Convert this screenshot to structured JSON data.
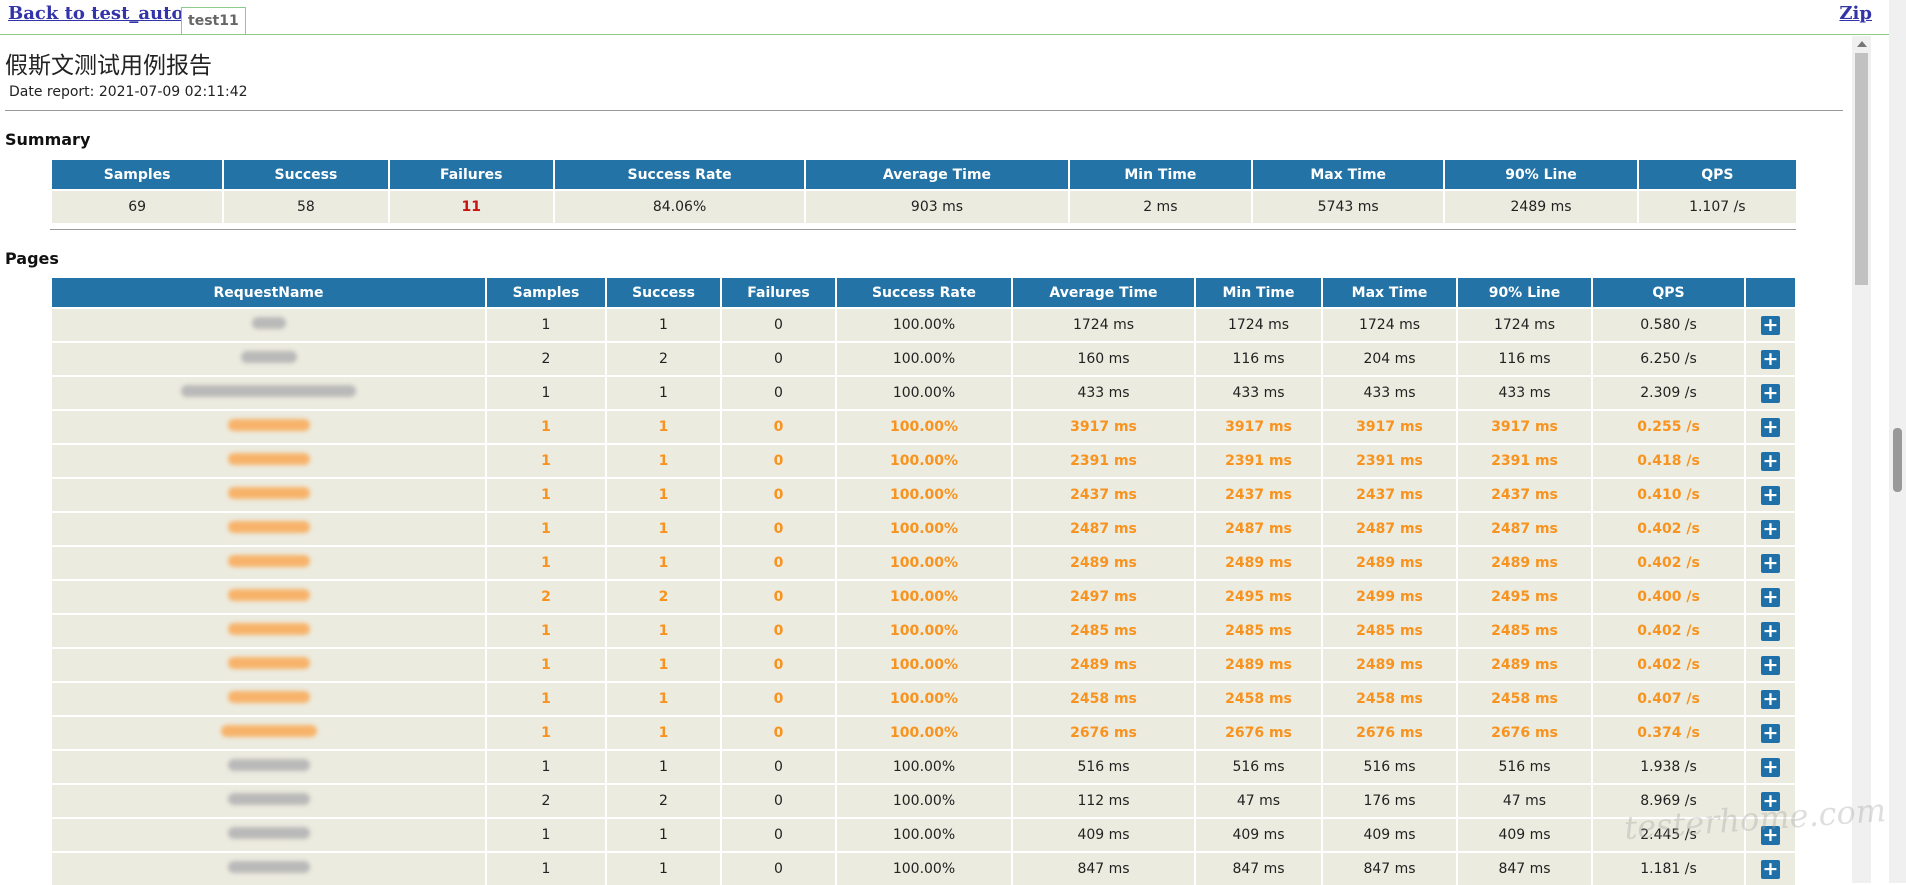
{
  "top": {
    "back_label": "Back to test_auto",
    "tab_label": "test11",
    "zip_label": "Zip"
  },
  "report": {
    "title": "假斯文测试用例报告",
    "date": "Date report: 2021-07-09 02:11:42"
  },
  "summary": {
    "heading": "Summary",
    "columns": [
      "Samples",
      "Success",
      "Failures",
      "Success Rate",
      "Average Time",
      "Min Time",
      "Max Time",
      "90% Line",
      "QPS"
    ],
    "values": [
      "69",
      "58",
      "11",
      "84.06%",
      "903 ms",
      "2 ms",
      "5743 ms",
      "2489 ms",
      "1.107 /s"
    ]
  },
  "pages": {
    "heading": "Pages",
    "columns": [
      "RequestName",
      "Samples",
      "Success",
      "Failures",
      "Success Rate",
      "Average Time",
      "Min Time",
      "Max Time",
      "90% Line",
      "QPS",
      ""
    ],
    "rows": [
      {
        "warn": false,
        "name_w": 34,
        "cells": [
          "1",
          "1",
          "0",
          "100.00%",
          "1724 ms",
          "1724 ms",
          "1724 ms",
          "1724 ms",
          "0.580 /s"
        ]
      },
      {
        "warn": false,
        "name_w": 56,
        "cells": [
          "2",
          "2",
          "0",
          "100.00%",
          "160 ms",
          "116 ms",
          "204 ms",
          "116 ms",
          "6.250 /s"
        ]
      },
      {
        "warn": false,
        "name_w": 175,
        "cells": [
          "1",
          "1",
          "0",
          "100.00%",
          "433 ms",
          "433 ms",
          "433 ms",
          "433 ms",
          "2.309 /s"
        ]
      },
      {
        "warn": true,
        "name_w": 82,
        "cells": [
          "1",
          "1",
          "0",
          "100.00%",
          "3917 ms",
          "3917 ms",
          "3917 ms",
          "3917 ms",
          "0.255 /s"
        ]
      },
      {
        "warn": true,
        "name_w": 82,
        "cells": [
          "1",
          "1",
          "0",
          "100.00%",
          "2391 ms",
          "2391 ms",
          "2391 ms",
          "2391 ms",
          "0.418 /s"
        ]
      },
      {
        "warn": true,
        "name_w": 82,
        "cells": [
          "1",
          "1",
          "0",
          "100.00%",
          "2437 ms",
          "2437 ms",
          "2437 ms",
          "2437 ms",
          "0.410 /s"
        ]
      },
      {
        "warn": true,
        "name_w": 82,
        "cells": [
          "1",
          "1",
          "0",
          "100.00%",
          "2487 ms",
          "2487 ms",
          "2487 ms",
          "2487 ms",
          "0.402 /s"
        ]
      },
      {
        "warn": true,
        "name_w": 82,
        "cells": [
          "1",
          "1",
          "0",
          "100.00%",
          "2489 ms",
          "2489 ms",
          "2489 ms",
          "2489 ms",
          "0.402 /s"
        ]
      },
      {
        "warn": true,
        "name_w": 82,
        "cells": [
          "2",
          "2",
          "0",
          "100.00%",
          "2497 ms",
          "2495 ms",
          "2499 ms",
          "2495 ms",
          "0.400 /s"
        ]
      },
      {
        "warn": true,
        "name_w": 82,
        "cells": [
          "1",
          "1",
          "0",
          "100.00%",
          "2485 ms",
          "2485 ms",
          "2485 ms",
          "2485 ms",
          "0.402 /s"
        ]
      },
      {
        "warn": true,
        "name_w": 82,
        "cells": [
          "1",
          "1",
          "0",
          "100.00%",
          "2489 ms",
          "2489 ms",
          "2489 ms",
          "2489 ms",
          "0.402 /s"
        ]
      },
      {
        "warn": true,
        "name_w": 82,
        "cells": [
          "1",
          "1",
          "0",
          "100.00%",
          "2458 ms",
          "2458 ms",
          "2458 ms",
          "2458 ms",
          "0.407 /s"
        ]
      },
      {
        "warn": true,
        "name_w": 96,
        "cells": [
          "1",
          "1",
          "0",
          "100.00%",
          "2676 ms",
          "2676 ms",
          "2676 ms",
          "2676 ms",
          "0.374 /s"
        ]
      },
      {
        "warn": false,
        "name_w": 82,
        "cells": [
          "1",
          "1",
          "0",
          "100.00%",
          "516 ms",
          "516 ms",
          "516 ms",
          "516 ms",
          "1.938 /s"
        ]
      },
      {
        "warn": false,
        "name_w": 82,
        "cells": [
          "2",
          "2",
          "0",
          "100.00%",
          "112 ms",
          "47 ms",
          "176 ms",
          "47 ms",
          "8.969 /s"
        ]
      },
      {
        "warn": false,
        "name_w": 82,
        "cells": [
          "1",
          "1",
          "0",
          "100.00%",
          "409 ms",
          "409 ms",
          "409 ms",
          "409 ms",
          "2.445 /s"
        ]
      },
      {
        "warn": false,
        "name_w": 82,
        "cells": [
          "1",
          "1",
          "0",
          "100.00%",
          "847 ms",
          "847 ms",
          "847 ms",
          "847 ms",
          "1.181 /s"
        ]
      }
    ],
    "expand_icon": "plus-icon"
  },
  "watermark": "testerhome.com",
  "colors": {
    "header_bg": "#2373a6",
    "row_bg": "#ecebdf",
    "warn_text": "#f7931e",
    "fail_text": "#cc1111"
  }
}
